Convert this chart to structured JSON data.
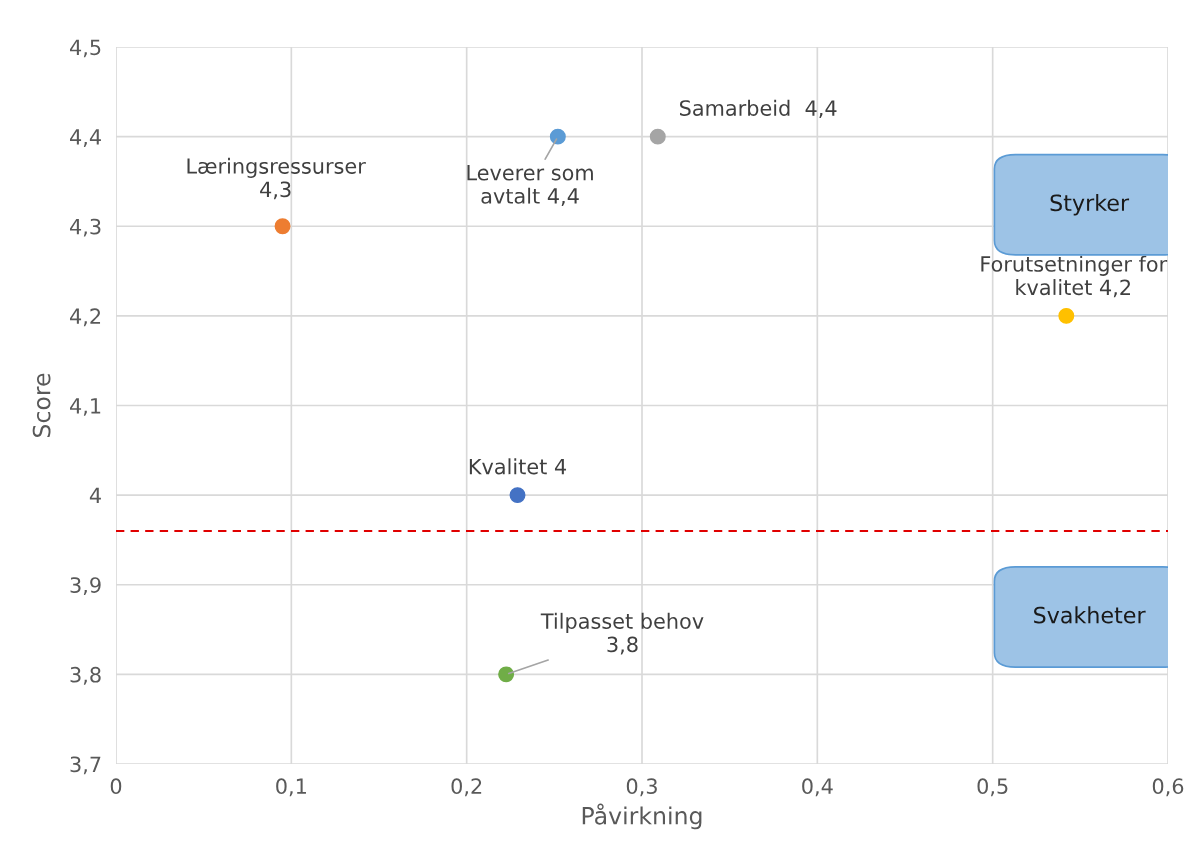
{
  "chart_data": {
    "type": "scatter",
    "xlabel": "Påvirkning",
    "ylabel": "Score",
    "x": [
      0.095,
      0.252,
      0.309,
      0.542,
      0.229,
      0.2225
    ],
    "series": [
      {
        "values": [
          4.3,
          4.4,
          4.4,
          4.2,
          4.0,
          3.8
        ],
        "colors": [
          "#ed7d31",
          "#5b9bd5",
          "#a5a5a5",
          "#ffc000",
          "#4472c4",
          "#70ad47"
        ],
        "value_labels": [
          "Læringsressurser\n4,3",
          "Leverer som\navtalt 4,4",
          "Samarbeid  4,4",
          "Forutsetninger for\nkvalitet 4,2",
          "Kvalitet 4",
          "Tilpasset behov\n3,8"
        ]
      }
    ],
    "xlim": [
      0,
      0.6
    ],
    "xticks": [
      {
        "value": 0,
        "label": "0"
      },
      {
        "value": 0.1,
        "label": "0,1"
      },
      {
        "value": 0.2,
        "label": "0,2"
      },
      {
        "value": 0.3,
        "label": "0,3"
      },
      {
        "value": 0.4,
        "label": "0,4"
      },
      {
        "value": 0.5,
        "label": "0,5"
      },
      {
        "value": 0.6,
        "label": "0,6"
      }
    ],
    "ylim": [
      3.7,
      4.5
    ],
    "yticks": [
      {
        "value": 3.7,
        "label": "3,7"
      },
      {
        "value": 3.8,
        "label": "3,8"
      },
      {
        "value": 3.9,
        "label": "3,9"
      },
      {
        "value": 4.0,
        "label": "4"
      },
      {
        "value": 4.1,
        "label": "4,1"
      },
      {
        "value": 4.2,
        "label": "4,2"
      },
      {
        "value": 4.3,
        "label": "4,3"
      },
      {
        "value": 4.4,
        "label": "4,4"
      },
      {
        "value": 4.5,
        "label": "4,5"
      }
    ],
    "ref_lines": [
      {
        "axis": "y",
        "value": 3.96,
        "color": "#e00000",
        "line_style": "dashed"
      }
    ],
    "annotations": [
      "Styrker",
      "Svakheter"
    ],
    "grid": true,
    "marker": "circle"
  }
}
